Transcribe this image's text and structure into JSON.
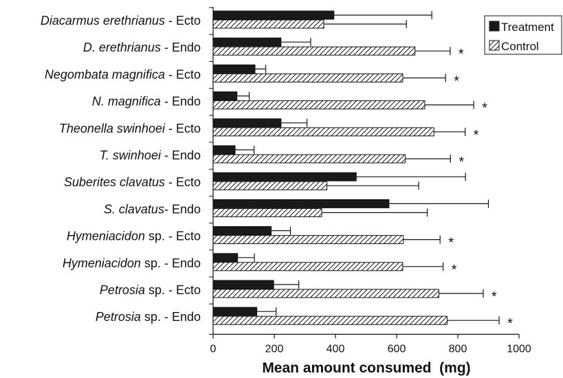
{
  "chart_data": {
    "type": "bar",
    "orientation": "horizontal",
    "xlabel": "Mean amount consumed  (mg)",
    "xlim": [
      0,
      1000
    ],
    "xticks": [
      0,
      200,
      400,
      600,
      800,
      1000
    ],
    "grid": false,
    "legend_position": "top-right",
    "categories": [
      {
        "italic": "Diacarmus erethrianus",
        "rest": " - Ecto"
      },
      {
        "italic": "D. erethrianus",
        "rest": " - Endo"
      },
      {
        "italic": "Negombata magnifica",
        "rest": " -  Ecto"
      },
      {
        "italic": "N. magnifica",
        "rest": " - Endo"
      },
      {
        "italic": "Theonella swinhoei",
        "rest": " - Ecto"
      },
      {
        "italic": "T. swinhoei",
        "rest": " - Endo"
      },
      {
        "italic": "Suberites clavatus",
        "rest": " - Ecto"
      },
      {
        "italic": "S. clavatus",
        "rest": "- Endo"
      },
      {
        "italic": "Hymeniacidon",
        "rest": " sp. - Ecto"
      },
      {
        "italic": "Hymeniacidon",
        "rest": " sp. - Endo"
      },
      {
        "italic": "Petrosia",
        "rest": " sp. - Ecto"
      },
      {
        "italic": "Petrosia",
        "rest": " sp. - Endo"
      }
    ],
    "series": [
      {
        "name": "Treatment",
        "fill": "solid",
        "color": "#1a1a1a",
        "values": [
          395,
          222,
          137,
          78,
          222,
          72,
          468,
          575,
          190,
          80,
          198,
          143
        ],
        "errors": [
          320,
          97,
          35,
          40,
          85,
          62,
          357,
          325,
          63,
          55,
          82,
          63
        ]
      },
      {
        "name": "Control",
        "fill": "hatched",
        "color": "#1a1a1a",
        "values": [
          362,
          660,
          620,
          692,
          722,
          628,
          372,
          355,
          622,
          620,
          738,
          765
        ],
        "errors": [
          270,
          115,
          140,
          160,
          102,
          148,
          300,
          345,
          120,
          132,
          145,
          170
        ]
      }
    ],
    "significance": [
      false,
      true,
      true,
      true,
      true,
      true,
      false,
      false,
      true,
      true,
      true,
      true
    ],
    "significance_marker": "*"
  }
}
